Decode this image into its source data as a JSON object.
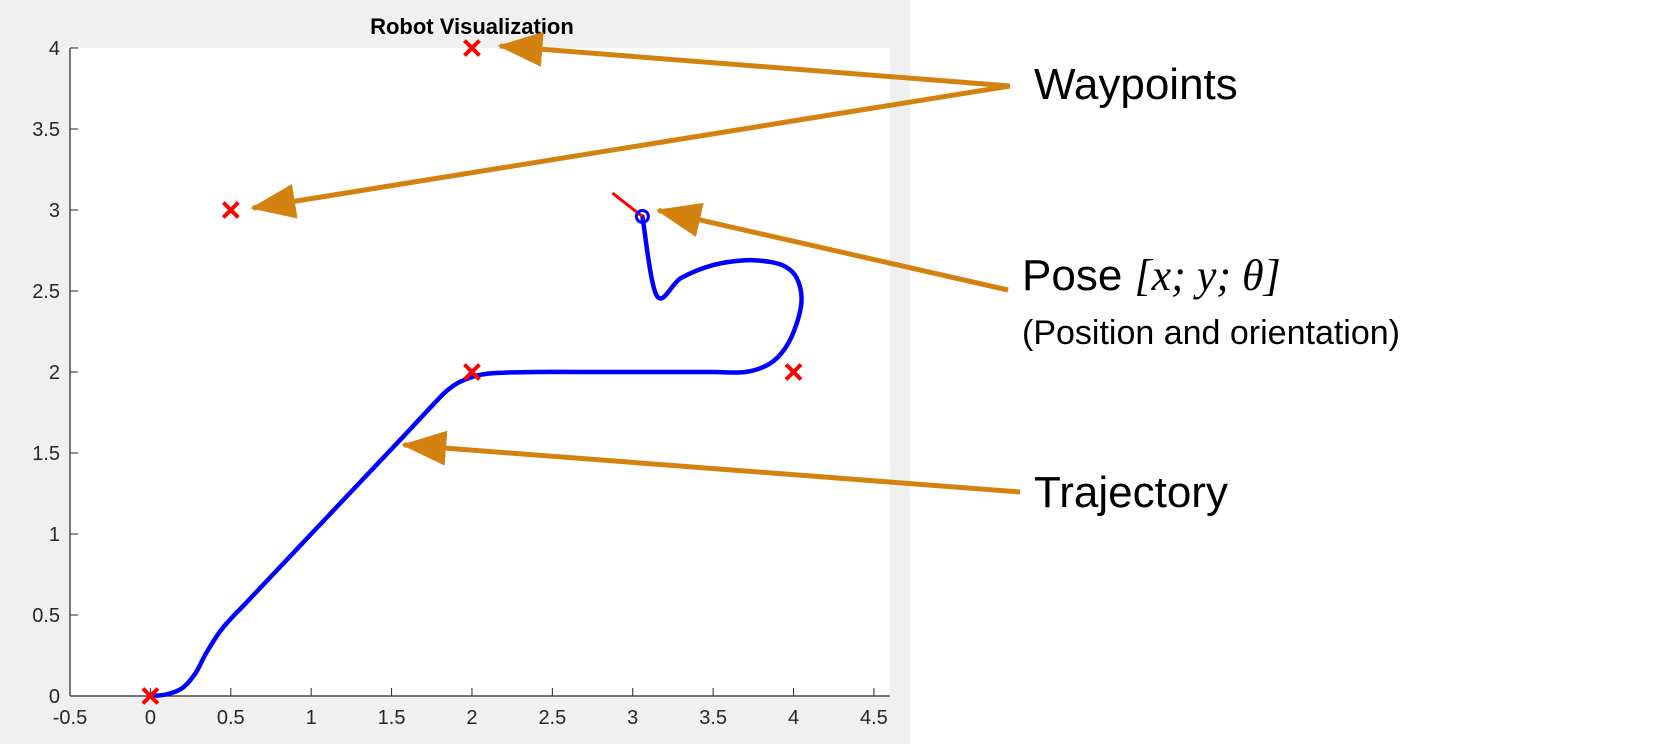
{
  "chart_data": {
    "type": "scatter",
    "title": "Robot Visualization",
    "xlabel": "",
    "ylabel": "",
    "xlim": [
      -0.5,
      4.6
    ],
    "ylim": [
      0,
      4
    ],
    "xticks": [
      -0.5,
      0,
      0.5,
      1,
      1.5,
      2,
      2.5,
      3,
      3.5,
      4,
      4.5
    ],
    "yticks": [
      0,
      0.5,
      1,
      1.5,
      2,
      2.5,
      3,
      3.5,
      4
    ],
    "xtick_labels": [
      "-0.5",
      "0",
      "0.5",
      "1",
      "1.5",
      "2",
      "2.5",
      "3",
      "3.5",
      "4",
      "4.5"
    ],
    "ytick_labels": [
      "0",
      "0.5",
      "1",
      "1.5",
      "2",
      "2.5",
      "3",
      "3.5",
      "4"
    ],
    "grid": false,
    "series": [
      {
        "kind": "waypoints",
        "marker": "x",
        "color": "#ff0000",
        "x": [
          0,
          2,
          4,
          0.5,
          2
        ],
        "y": [
          0,
          2,
          2,
          3,
          4
        ]
      },
      {
        "kind": "trajectory",
        "marker": "line",
        "color": "#0000ff",
        "x": [
          0,
          0.1,
          0.2,
          0.28,
          0.35,
          0.45,
          0.6,
          0.8,
          1.0,
          1.2,
          1.4,
          1.6,
          1.75,
          1.85,
          1.95,
          2.1,
          2.4,
          2.8,
          3.2,
          3.5,
          3.7,
          3.85,
          3.95,
          4.02,
          4.05,
          4.02,
          3.95,
          3.85,
          3.7,
          3.5,
          3.3,
          3.15,
          3.06
        ],
        "y": [
          0,
          0.01,
          0.05,
          0.14,
          0.27,
          0.42,
          0.58,
          0.79,
          1.0,
          1.21,
          1.42,
          1.63,
          1.79,
          1.89,
          1.95,
          1.99,
          2.0,
          2.0,
          2.0,
          2.0,
          2.0,
          2.05,
          2.15,
          2.3,
          2.45,
          2.58,
          2.65,
          2.68,
          2.69,
          2.66,
          2.58,
          2.47,
          2.96
        ]
      },
      {
        "kind": "pose",
        "marker": "o",
        "color": "#0000ff",
        "x": [
          3.06
        ],
        "y": [
          2.96
        ],
        "theta_deg": 142,
        "heading_color": "#ff0000"
      }
    ],
    "annotations": [
      {
        "label": "Waypoints",
        "arrow_color": "#d4820f"
      },
      {
        "label": "Pose",
        "label_math": "[x; y; θ]",
        "sublabel": "(Position and orientation)",
        "arrow_color": "#d4820f"
      },
      {
        "label": "Trajectory",
        "arrow_color": "#d4820f"
      }
    ]
  },
  "colors": {
    "panel_bg": "#f0f0f0",
    "axes_bg": "#ffffff",
    "axis": "#262626",
    "waypoint": "#ff0000",
    "trajectory": "#0000ff",
    "arrow": "#d4820f"
  }
}
